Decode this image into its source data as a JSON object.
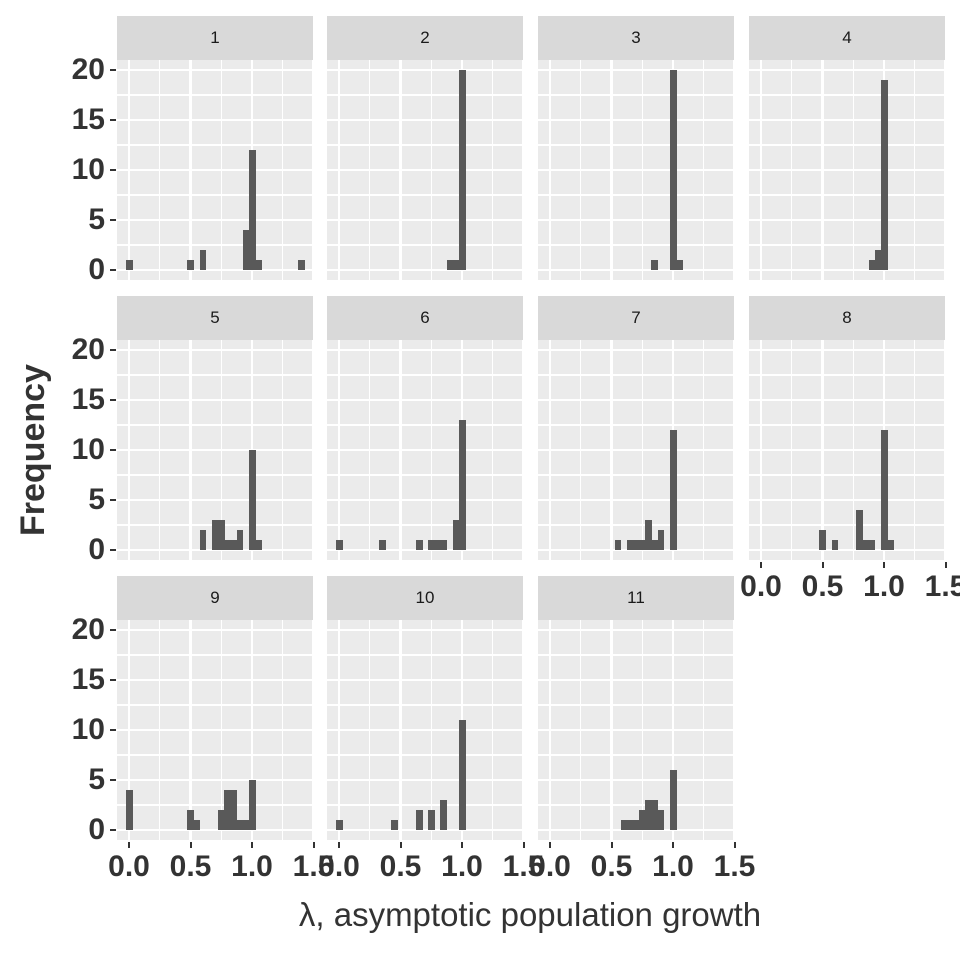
{
  "chart_data": {
    "type": "bar",
    "subtype": "faceted-histogram",
    "xlabel": "λ, asymptotic population growth",
    "ylabel": "Frequency",
    "xlim": [
      -0.09,
      1.5
    ],
    "ylim": [
      -1,
      21
    ],
    "x_ticks": [
      "0.0",
      "0.5",
      "1.0",
      "1.5"
    ],
    "y_ticks": [
      "0",
      "5",
      "10",
      "15",
      "20"
    ],
    "bin_width": 0.05,
    "grid": true,
    "bar_color": "#595959",
    "panels": [
      {
        "label": "1",
        "bins": [
          [
            0.0,
            1
          ],
          [
            0.5,
            1
          ],
          [
            0.6,
            2
          ],
          [
            0.95,
            4
          ],
          [
            1.0,
            12
          ],
          [
            1.05,
            1
          ],
          [
            1.4,
            1
          ]
        ]
      },
      {
        "label": "2",
        "bins": [
          [
            0.9,
            1
          ],
          [
            0.95,
            1
          ],
          [
            1.0,
            20
          ]
        ]
      },
      {
        "label": "3",
        "bins": [
          [
            0.85,
            1
          ],
          [
            1.0,
            20
          ],
          [
            1.05,
            1
          ]
        ]
      },
      {
        "label": "4",
        "bins": [
          [
            0.9,
            1
          ],
          [
            0.95,
            2
          ],
          [
            1.0,
            19
          ]
        ]
      },
      {
        "label": "5",
        "bins": [
          [
            0.6,
            2
          ],
          [
            0.7,
            3
          ],
          [
            0.75,
            3
          ],
          [
            0.8,
            1
          ],
          [
            0.85,
            1
          ],
          [
            0.9,
            2
          ],
          [
            1.0,
            10
          ],
          [
            1.05,
            1
          ]
        ]
      },
      {
        "label": "6",
        "bins": [
          [
            0.0,
            1
          ],
          [
            0.35,
            1
          ],
          [
            0.65,
            1
          ],
          [
            0.75,
            1
          ],
          [
            0.8,
            1
          ],
          [
            0.85,
            1
          ],
          [
            0.95,
            3
          ],
          [
            1.0,
            13
          ]
        ]
      },
      {
        "label": "7",
        "bins": [
          [
            0.55,
            1
          ],
          [
            0.65,
            1
          ],
          [
            0.7,
            1
          ],
          [
            0.75,
            1
          ],
          [
            0.8,
            3
          ],
          [
            0.85,
            1
          ],
          [
            0.9,
            2
          ],
          [
            1.0,
            12
          ]
        ]
      },
      {
        "label": "8",
        "bins": [
          [
            0.5,
            2
          ],
          [
            0.6,
            1
          ],
          [
            0.8,
            4
          ],
          [
            0.85,
            1
          ],
          [
            0.9,
            1
          ],
          [
            1.0,
            12
          ],
          [
            1.05,
            1
          ]
        ]
      },
      {
        "label": "9",
        "bins": [
          [
            0.0,
            4
          ],
          [
            0.5,
            2
          ],
          [
            0.55,
            1
          ],
          [
            0.75,
            2
          ],
          [
            0.8,
            4
          ],
          [
            0.85,
            4
          ],
          [
            0.9,
            1
          ],
          [
            0.95,
            1
          ],
          [
            1.0,
            5
          ]
        ]
      },
      {
        "label": "10",
        "bins": [
          [
            0.0,
            1
          ],
          [
            0.45,
            1
          ],
          [
            0.65,
            2
          ],
          [
            0.75,
            2
          ],
          [
            0.85,
            3
          ],
          [
            1.0,
            11
          ]
        ]
      },
      {
        "label": "11",
        "bins": [
          [
            0.6,
            1
          ],
          [
            0.65,
            1
          ],
          [
            0.7,
            1
          ],
          [
            0.75,
            2
          ],
          [
            0.8,
            3
          ],
          [
            0.85,
            3
          ],
          [
            0.9,
            2
          ],
          [
            1.0,
            6
          ]
        ]
      }
    ]
  },
  "axes": {
    "xlabel": "λ, asymptotic population growth",
    "ylabel": "Frequency",
    "x_ticks": [
      "0.0",
      "0.5",
      "1.0",
      "1.5"
    ],
    "y_ticks": [
      "0",
      "5",
      "10",
      "15",
      "20"
    ]
  }
}
